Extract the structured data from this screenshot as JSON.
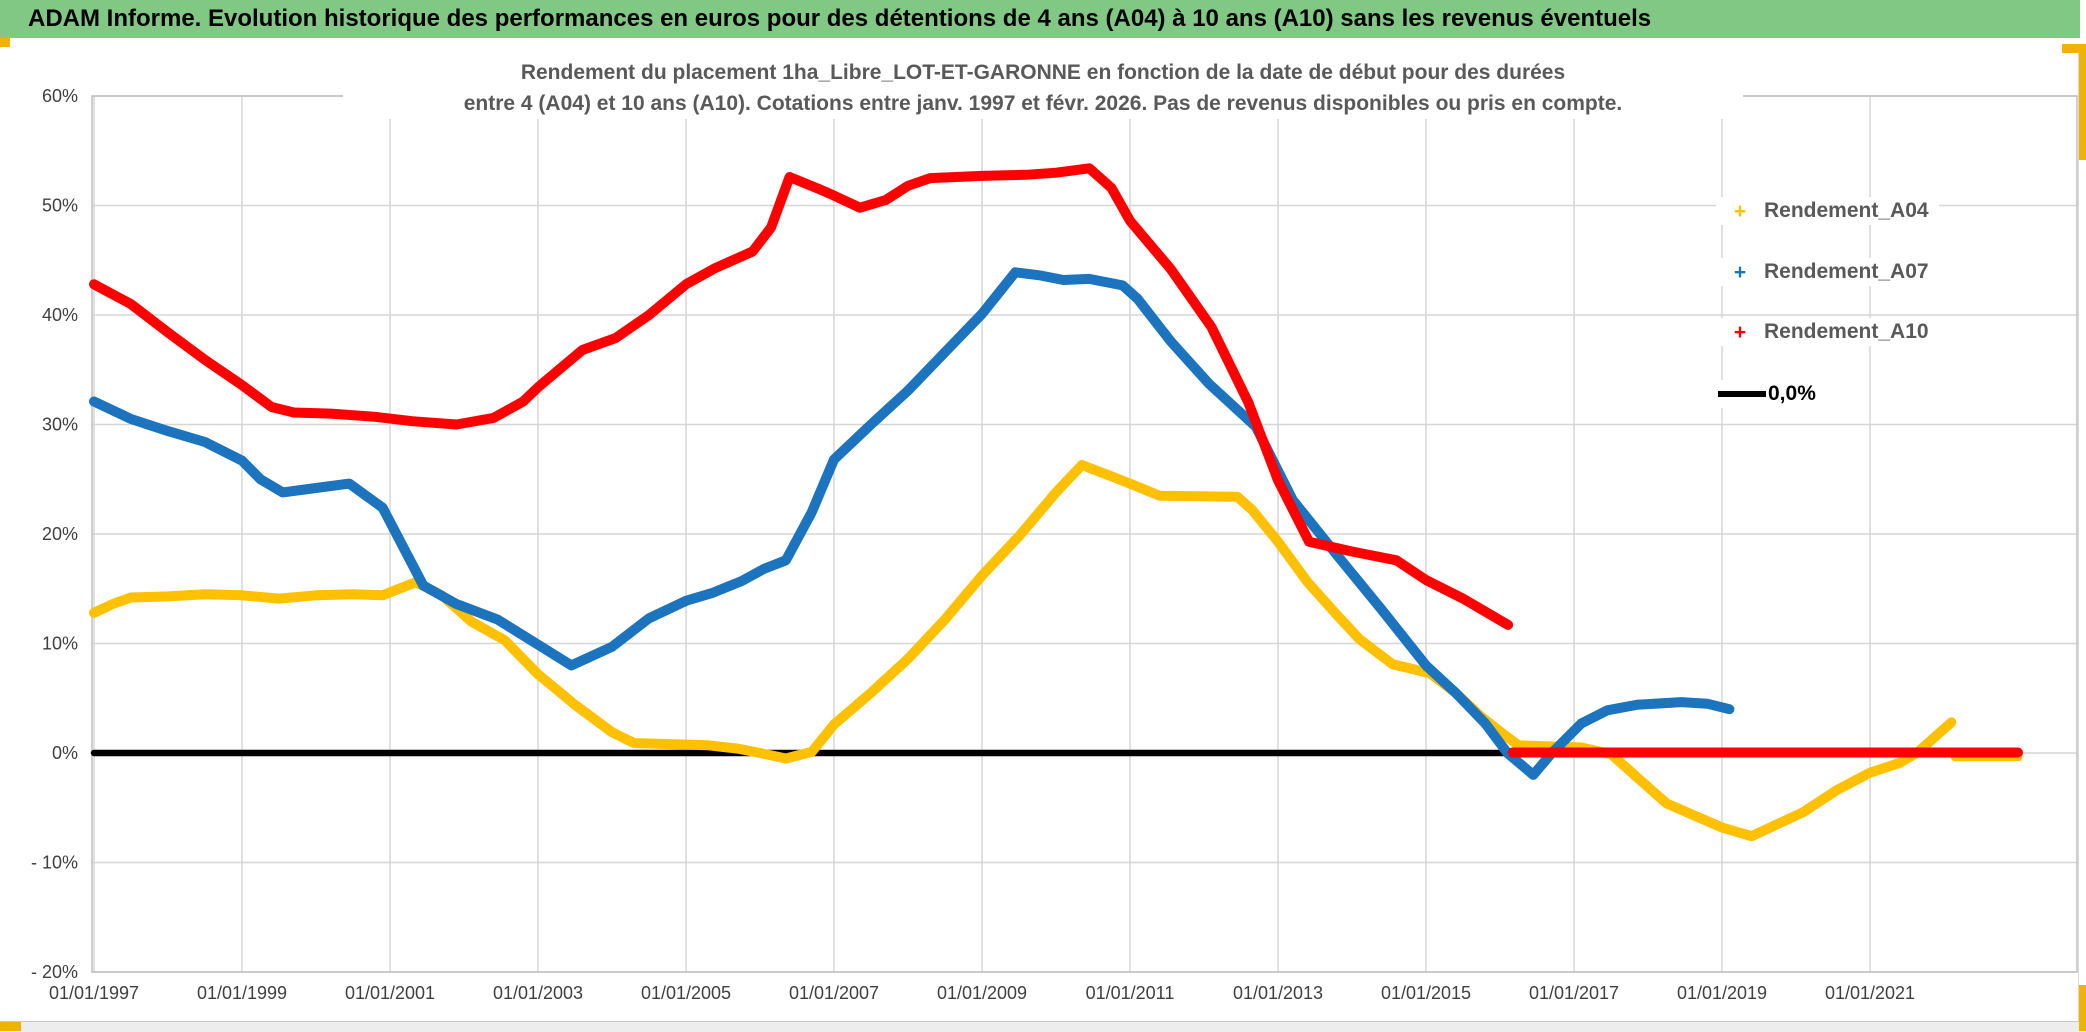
{
  "header": {
    "title": "ADAM Informe. Evolution historique des performances en euros pour des détentions de 4 ans (A04) à 10 ans (A10) sans les revenus éventuels",
    "bg_color": "#80C883"
  },
  "chart_data": {
    "type": "line",
    "title_line1": "Rendement du placement 1ha_Libre_LOT-ET-GARONNE en fonction de la date de début pour des durées",
    "title_line2": "entre 4 (A04) et 10 ans (A10). Cotations entre janv. 1997 et févr. 2026. Pas de revenus disponibles ou pris en compte.",
    "grid": true,
    "legend_position": "right-inside",
    "colors": {
      "a04": "#FFC000",
      "a07": "#1C73BE",
      "a10": "#FF0000",
      "zero": "#000000",
      "gridline": "#D6D6D6",
      "plot_border": "#BFBFBF",
      "axis_text": "#3F3F3F"
    },
    "x_axis": {
      "min_year": 1997.0,
      "max_year": 2023.8,
      "tick_years": [
        1997,
        1999,
        2001,
        2003,
        2005,
        2007,
        2009,
        2011,
        2013,
        2015,
        2017,
        2019,
        2021
      ],
      "tick_labels": [
        "01/01/1997",
        "01/01/1999",
        "01/01/2001",
        "01/01/2003",
        "01/01/2005",
        "01/01/2007",
        "01/01/2009",
        "01/01/2011",
        "01/01/2013",
        "01/01/2015",
        "01/01/2017",
        "01/01/2019",
        "01/01/2021"
      ]
    },
    "y_axis": {
      "min": -20,
      "max": 60,
      "step": 10,
      "tick_values": [
        60,
        50,
        40,
        30,
        20,
        10,
        0,
        -10,
        -20
      ],
      "tick_labels": [
        "60%",
        "50%",
        "40%",
        "30%",
        "20%",
        "10%",
        "0%",
        "- 10%",
        "- 20%"
      ]
    },
    "legend": [
      {
        "label": "Rendement_A04",
        "marker": "+",
        "color": "#FFC000",
        "type": "marker"
      },
      {
        "label": "Rendement_A07",
        "marker": "+",
        "color": "#1C73BE",
        "type": "marker"
      },
      {
        "label": "Rendement_A10",
        "marker": "+",
        "color": "#FF0000",
        "type": "marker"
      },
      {
        "label": "0,0%",
        "marker": "line",
        "color": "#000000",
        "type": "line"
      }
    ],
    "series": [
      {
        "id": "zero-line",
        "name": "0,0%",
        "color": "#000000",
        "width": 6.5,
        "points": [
          [
            1997.0,
            0
          ],
          [
            2023.0,
            0
          ]
        ]
      },
      {
        "id": "rendement-a04-tail",
        "name": "Rendement_A04",
        "color": "#FFC000",
        "width": 9,
        "points": [
          [
            2022.15,
            -0.35
          ],
          [
            2023.0,
            -0.35
          ]
        ]
      },
      {
        "id": "rendement-a04",
        "name": "Rendement_A04",
        "color": "#FFC000",
        "width": 10,
        "points": [
          [
            1997.0,
            12.8
          ],
          [
            1997.25,
            13.6
          ],
          [
            1997.5,
            14.2
          ],
          [
            1998.0,
            14.3
          ],
          [
            1998.5,
            14.5
          ],
          [
            1999.0,
            14.4
          ],
          [
            1999.5,
            14.1
          ],
          [
            2000.0,
            14.4
          ],
          [
            2000.5,
            14.5
          ],
          [
            2000.9,
            14.4
          ],
          [
            2001.35,
            15.6
          ],
          [
            2001.7,
            14.4
          ],
          [
            2002.1,
            12.0
          ],
          [
            2002.55,
            10.3
          ],
          [
            2003.0,
            7.2
          ],
          [
            2003.5,
            4.4
          ],
          [
            2004.0,
            1.9
          ],
          [
            2004.3,
            0.9
          ],
          [
            2005.3,
            0.7
          ],
          [
            2005.7,
            0.4
          ],
          [
            2006.0,
            0.0
          ],
          [
            2006.35,
            -0.5
          ],
          [
            2006.7,
            0.1
          ],
          [
            2007.0,
            2.6
          ],
          [
            2007.5,
            5.5
          ],
          [
            2008.0,
            8.6
          ],
          [
            2008.5,
            12.2
          ],
          [
            2009.0,
            16.2
          ],
          [
            2009.5,
            19.8
          ],
          [
            2010.0,
            23.8
          ],
          [
            2010.35,
            26.3
          ],
          [
            2010.7,
            25.4
          ],
          [
            2011.0,
            24.6
          ],
          [
            2011.4,
            23.5
          ],
          [
            2012.45,
            23.4
          ],
          [
            2012.65,
            22.2
          ],
          [
            2013.0,
            19.3
          ],
          [
            2013.4,
            15.6
          ],
          [
            2013.77,
            12.8
          ],
          [
            2014.1,
            10.4
          ],
          [
            2014.55,
            8.1
          ],
          [
            2015.05,
            7.3
          ],
          [
            2015.4,
            5.5
          ],
          [
            2015.75,
            3.3
          ],
          [
            2016.07,
            1.6
          ],
          [
            2016.25,
            0.7
          ],
          [
            2017.1,
            0.5
          ],
          [
            2017.5,
            -0.1
          ],
          [
            2018.25,
            -4.6
          ],
          [
            2019.0,
            -6.8
          ],
          [
            2019.4,
            -7.6
          ],
          [
            2020.1,
            -5.4
          ],
          [
            2020.55,
            -3.4
          ],
          [
            2021.0,
            -1.8
          ],
          [
            2021.4,
            -0.9
          ],
          [
            2021.65,
            0.1
          ],
          [
            2022.1,
            2.8
          ]
        ]
      },
      {
        "id": "rendement-a07",
        "name": "Rendement_A07",
        "color": "#1C73BE",
        "width": 10,
        "points": [
          [
            1997.0,
            32.1
          ],
          [
            1997.5,
            30.5
          ],
          [
            1998.0,
            29.4
          ],
          [
            1998.5,
            28.4
          ],
          [
            1999.0,
            26.7
          ],
          [
            1999.25,
            25.0
          ],
          [
            1999.55,
            23.8
          ],
          [
            2000.0,
            24.2
          ],
          [
            2000.45,
            24.6
          ],
          [
            2000.9,
            22.4
          ],
          [
            2001.45,
            15.3
          ],
          [
            2001.9,
            13.6
          ],
          [
            2002.45,
            12.2
          ],
          [
            2003.0,
            9.9
          ],
          [
            2003.45,
            8.0
          ],
          [
            2004.0,
            9.7
          ],
          [
            2004.5,
            12.3
          ],
          [
            2005.0,
            13.9
          ],
          [
            2005.35,
            14.6
          ],
          [
            2005.75,
            15.7
          ],
          [
            2006.05,
            16.8
          ],
          [
            2006.35,
            17.6
          ],
          [
            2006.7,
            22.0
          ],
          [
            2007.0,
            26.8
          ],
          [
            2007.5,
            30.0
          ],
          [
            2008.0,
            33.1
          ],
          [
            2008.5,
            36.6
          ],
          [
            2009.0,
            40.1
          ],
          [
            2009.45,
            43.9
          ],
          [
            2009.8,
            43.6
          ],
          [
            2010.1,
            43.2
          ],
          [
            2010.45,
            43.3
          ],
          [
            2010.9,
            42.7
          ],
          [
            2011.1,
            41.5
          ],
          [
            2011.55,
            37.6
          ],
          [
            2012.07,
            33.7
          ],
          [
            2012.7,
            29.8
          ],
          [
            2013.2,
            23.1
          ],
          [
            2013.77,
            18.3
          ],
          [
            2014.4,
            13.1
          ],
          [
            2015.0,
            8.0
          ],
          [
            2015.4,
            5.5
          ],
          [
            2015.8,
            2.7
          ],
          [
            2016.1,
            0.0
          ],
          [
            2016.45,
            -2.0
          ],
          [
            2016.7,
            0.0
          ],
          [
            2017.1,
            2.7
          ],
          [
            2017.45,
            3.9
          ],
          [
            2017.85,
            4.4
          ],
          [
            2018.45,
            4.65
          ],
          [
            2018.8,
            4.5
          ],
          [
            2019.1,
            4.0
          ]
        ]
      },
      {
        "id": "rendement-a10",
        "name": "Rendement_A10",
        "color": "#FF0000",
        "width": 10,
        "points": [
          [
            1997.0,
            42.8
          ],
          [
            1997.5,
            41.0
          ],
          [
            1998.0,
            38.4
          ],
          [
            1998.5,
            35.9
          ],
          [
            1999.0,
            33.6
          ],
          [
            1999.4,
            31.6
          ],
          [
            1999.7,
            31.1
          ],
          [
            2000.2,
            31.0
          ],
          [
            2000.8,
            30.7
          ],
          [
            2001.3,
            30.3
          ],
          [
            2001.9,
            30.0
          ],
          [
            2002.4,
            30.6
          ],
          [
            2002.8,
            32.1
          ],
          [
            2003.0,
            33.4
          ],
          [
            2003.6,
            36.8
          ],
          [
            2004.05,
            37.9
          ],
          [
            2004.5,
            40.0
          ],
          [
            2005.0,
            42.8
          ],
          [
            2005.4,
            44.3
          ],
          [
            2005.9,
            45.8
          ],
          [
            2006.15,
            48.0
          ],
          [
            2006.4,
            52.6
          ],
          [
            2006.8,
            51.5
          ],
          [
            2007.0,
            50.9
          ],
          [
            2007.35,
            49.8
          ],
          [
            2007.7,
            50.5
          ],
          [
            2008.0,
            51.8
          ],
          [
            2008.3,
            52.5
          ],
          [
            2009.0,
            52.7
          ],
          [
            2009.6,
            52.8
          ],
          [
            2010.0,
            53.0
          ],
          [
            2010.45,
            53.4
          ],
          [
            2010.75,
            51.6
          ],
          [
            2011.0,
            48.6
          ],
          [
            2011.55,
            44.2
          ],
          [
            2012.1,
            38.9
          ],
          [
            2012.6,
            32.0
          ],
          [
            2013.0,
            24.9
          ],
          [
            2013.42,
            19.3
          ],
          [
            2014.0,
            18.4
          ],
          [
            2014.6,
            17.6
          ],
          [
            2015.0,
            15.8
          ],
          [
            2015.5,
            14.1
          ],
          [
            2016.11,
            11.7
          ]
        ]
      },
      {
        "id": "rendement-a10-flat",
        "name": "Rendement_A10",
        "color": "#FF0000",
        "width": 10,
        "points": [
          [
            2016.17,
            0.05
          ],
          [
            2023.0,
            0.05
          ]
        ]
      }
    ]
  }
}
